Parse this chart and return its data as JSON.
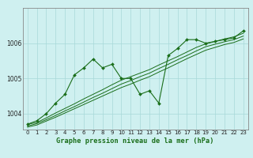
{
  "title": "Graphe pression niveau de la mer (hPa)",
  "bg_color": "#cff0f0",
  "plot_bg_color": "#cff0f0",
  "grid_color": "#a8d8d8",
  "line_color": "#1a6e1a",
  "marker_color": "#1a6e1a",
  "xlim": [
    -0.5,
    23.5
  ],
  "ylim": [
    1003.55,
    1007.0
  ],
  "xticks": [
    0,
    1,
    2,
    3,
    4,
    5,
    6,
    7,
    8,
    9,
    10,
    11,
    12,
    13,
    14,
    15,
    16,
    17,
    18,
    19,
    20,
    21,
    22,
    23
  ],
  "yticks": [
    1004,
    1005,
    1006
  ],
  "line1": [
    1003.7,
    1003.8,
    1004.0,
    1004.3,
    1004.55,
    1005.1,
    1005.3,
    1005.55,
    1005.3,
    1005.4,
    1005.0,
    1005.0,
    1004.55,
    1004.65,
    1004.3,
    1005.65,
    1005.85,
    1006.1,
    1006.1,
    1006.0,
    1006.05,
    1006.1,
    1006.15,
    1006.35
  ],
  "line2": [
    1003.7,
    1003.75,
    1003.88,
    1004.02,
    1004.15,
    1004.28,
    1004.42,
    1004.55,
    1004.68,
    1004.82,
    1004.95,
    1005.05,
    1005.15,
    1005.25,
    1005.38,
    1005.5,
    1005.62,
    1005.75,
    1005.88,
    1005.98,
    1006.05,
    1006.12,
    1006.18,
    1006.28
  ],
  "line3": [
    1003.65,
    1003.72,
    1003.83,
    1003.95,
    1004.08,
    1004.2,
    1004.33,
    1004.46,
    1004.58,
    1004.71,
    1004.84,
    1004.94,
    1005.05,
    1005.15,
    1005.28,
    1005.4,
    1005.53,
    1005.65,
    1005.78,
    1005.9,
    1005.97,
    1006.04,
    1006.1,
    1006.2
  ],
  "line4": [
    1003.62,
    1003.68,
    1003.79,
    1003.9,
    1004.02,
    1004.14,
    1004.26,
    1004.38,
    1004.5,
    1004.62,
    1004.74,
    1004.84,
    1004.95,
    1005.05,
    1005.18,
    1005.3,
    1005.43,
    1005.56,
    1005.68,
    1005.8,
    1005.88,
    1005.96,
    1006.02,
    1006.12
  ]
}
